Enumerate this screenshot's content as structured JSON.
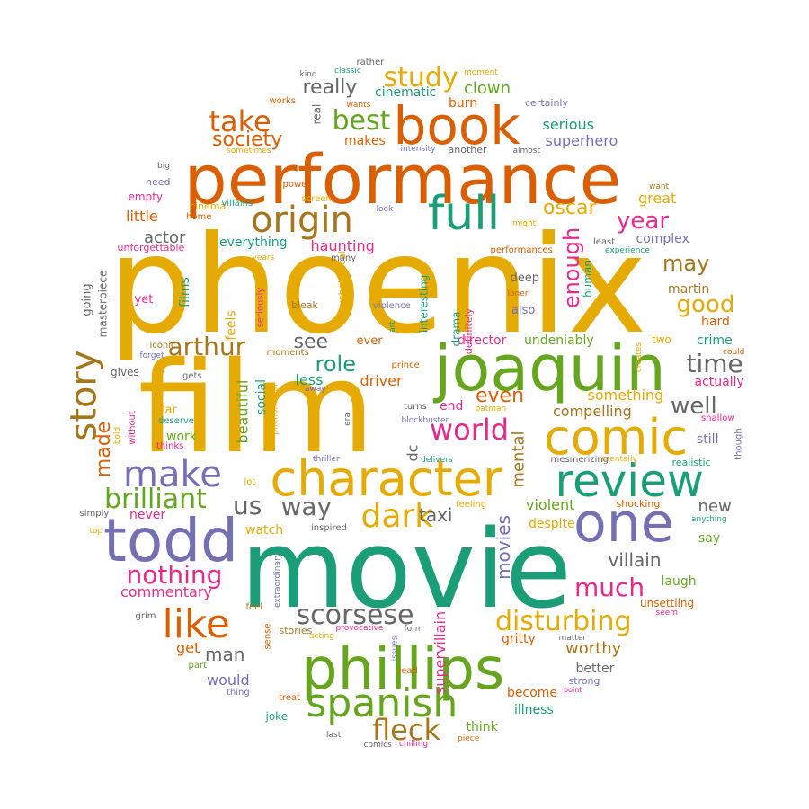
{
  "palette": {
    "orange": "#d95f02",
    "gold": "#e6ab02",
    "teal": "#1b9e77",
    "purple": "#7570b3",
    "pink": "#e7298a",
    "green": "#66a61e",
    "brown": "#a6761d",
    "gray": "#666666"
  },
  "words": [
    {
      "text": "phoenix",
      "color": "gold"
    },
    {
      "text": "film",
      "color": "gold"
    },
    {
      "text": "movie",
      "color": "teal"
    },
    {
      "text": "performance",
      "color": "orange"
    },
    {
      "text": "joaquin",
      "color": "green"
    },
    {
      "text": "phillips",
      "color": "green"
    },
    {
      "text": "book",
      "color": "orange"
    },
    {
      "text": "character",
      "color": "gold"
    },
    {
      "text": "comic",
      "color": "gold"
    },
    {
      "text": "todd",
      "color": "purple"
    },
    {
      "text": "one",
      "color": "purple"
    },
    {
      "text": "review",
      "color": "teal"
    },
    {
      "text": "full",
      "color": "teal"
    },
    {
      "text": "spanish",
      "color": "green"
    },
    {
      "text": "origin",
      "color": "brown"
    },
    {
      "text": "story",
      "color": "brown"
    },
    {
      "text": "like",
      "color": "orange"
    },
    {
      "text": "make",
      "color": "purple"
    },
    {
      "text": "dark",
      "color": "gold"
    },
    {
      "text": "fleck",
      "color": "brown"
    },
    {
      "text": "world",
      "color": "pink"
    },
    {
      "text": "disturbing",
      "color": "gold"
    },
    {
      "text": "scorsese",
      "color": "gray"
    },
    {
      "text": "brilliant",
      "color": "green"
    },
    {
      "text": "nothing",
      "color": "pink"
    },
    {
      "text": "much",
      "color": "pink"
    },
    {
      "text": "time",
      "color": "gray"
    },
    {
      "text": "way",
      "color": "gray"
    },
    {
      "text": "us",
      "color": "gray"
    },
    {
      "text": "take",
      "color": "orange"
    },
    {
      "text": "best",
      "color": "green"
    },
    {
      "text": "study",
      "color": "gold"
    },
    {
      "text": "arthur",
      "color": "brown"
    },
    {
      "text": "enough",
      "color": "pink"
    },
    {
      "text": "year",
      "color": "pink"
    },
    {
      "text": "oscar",
      "color": "gold"
    },
    {
      "text": "well",
      "color": "gray"
    },
    {
      "text": "good",
      "color": "gold"
    },
    {
      "text": "may",
      "color": "brown"
    },
    {
      "text": "society",
      "color": "orange"
    },
    {
      "text": "really",
      "color": "gray"
    },
    {
      "text": "see",
      "color": "gray"
    },
    {
      "text": "role",
      "color": "teal"
    },
    {
      "text": "even",
      "color": "orange"
    },
    {
      "text": "made",
      "color": "orange"
    },
    {
      "text": "villain",
      "color": "gray"
    },
    {
      "text": "movies",
      "color": "purple"
    },
    {
      "text": "man",
      "color": "gray"
    },
    {
      "text": "mental",
      "color": "brown"
    },
    {
      "text": "taxi",
      "color": "gray"
    },
    {
      "text": "worthy",
      "color": "brown"
    },
    {
      "text": "supervillain",
      "color": "pink"
    },
    {
      "text": "clown",
      "color": "green"
    },
    {
      "text": "serious",
      "color": "teal"
    },
    {
      "text": "superhero",
      "color": "purple"
    },
    {
      "text": "something",
      "color": "gold"
    },
    {
      "text": "compelling",
      "color": "brown"
    },
    {
      "text": "violent",
      "color": "green"
    },
    {
      "text": "beautiful",
      "color": "green"
    },
    {
      "text": "actor",
      "color": "gray"
    },
    {
      "text": "little",
      "color": "orange"
    },
    {
      "text": "new",
      "color": "gray"
    },
    {
      "text": "commentary",
      "color": "pink"
    },
    {
      "text": "complex",
      "color": "purple"
    },
    {
      "text": "martin",
      "color": "brown"
    },
    {
      "text": "hard",
      "color": "orange"
    },
    {
      "text": "haunting",
      "color": "pink"
    },
    {
      "text": "everything",
      "color": "teal"
    },
    {
      "text": "great",
      "color": "gold"
    },
    {
      "text": "cinematic",
      "color": "teal"
    },
    {
      "text": "makes",
      "color": "orange"
    },
    {
      "text": "burn",
      "color": "orange"
    },
    {
      "text": "less",
      "color": "teal"
    },
    {
      "text": "driver",
      "color": "orange"
    },
    {
      "text": "dc",
      "color": "gray"
    },
    {
      "text": "end",
      "color": "pink"
    },
    {
      "text": "crime",
      "color": "teal"
    },
    {
      "text": "actually",
      "color": "pink"
    },
    {
      "text": "director",
      "color": "pink"
    },
    {
      "text": "social",
      "color": "teal"
    },
    {
      "text": "feels",
      "color": "gold"
    },
    {
      "text": "films",
      "color": "teal"
    },
    {
      "text": "would",
      "color": "purple"
    },
    {
      "text": "get",
      "color": "orange"
    },
    {
      "text": "watch",
      "color": "gold"
    },
    {
      "text": "work",
      "color": "green"
    },
    {
      "text": "laugh",
      "color": "green"
    },
    {
      "text": "never",
      "color": "pink"
    },
    {
      "text": "illness",
      "color": "teal"
    },
    {
      "text": "gritty",
      "color": "orange"
    },
    {
      "text": "think",
      "color": "green"
    },
    {
      "text": "become",
      "color": "orange"
    },
    {
      "text": "better",
      "color": "gray"
    },
    {
      "text": "undeniably",
      "color": "green"
    },
    {
      "text": "despite",
      "color": "gold"
    },
    {
      "text": "still",
      "color": "purple"
    },
    {
      "text": "say",
      "color": "green"
    },
    {
      "text": "unsettling",
      "color": "orange"
    },
    {
      "text": "two",
      "color": "gold"
    },
    {
      "text": "deep",
      "color": "gray"
    },
    {
      "text": "also",
      "color": "purple"
    },
    {
      "text": "far",
      "color": "gold"
    },
    {
      "text": "going",
      "color": "gray"
    },
    {
      "text": "masterpiece",
      "color": "gray"
    },
    {
      "text": "ever",
      "color": "orange"
    },
    {
      "text": "interesting",
      "color": "teal"
    },
    {
      "text": "drama",
      "color": "teal"
    },
    {
      "text": "definitely",
      "color": "pink"
    },
    {
      "text": "human",
      "color": "teal"
    },
    {
      "text": "yet",
      "color": "pink"
    },
    {
      "text": "iconic",
      "color": "brown"
    },
    {
      "text": "gives",
      "color": "gray"
    },
    {
      "text": "gets",
      "color": "gray"
    },
    {
      "text": "forget",
      "color": "purple"
    },
    {
      "text": "cinema",
      "color": "gold"
    },
    {
      "text": "home",
      "color": "orange"
    },
    {
      "text": "empty",
      "color": "pink"
    },
    {
      "text": "need",
      "color": "purple"
    },
    {
      "text": "unforgettable",
      "color": "pink"
    },
    {
      "text": "deserve",
      "color": "teal"
    },
    {
      "text": "thinks",
      "color": "pink"
    },
    {
      "text": "without",
      "color": "pink"
    },
    {
      "text": "bold",
      "color": "gold"
    },
    {
      "text": "simply",
      "color": "gray"
    },
    {
      "text": "top",
      "color": "gold"
    },
    {
      "text": "joke",
      "color": "teal"
    },
    {
      "text": "stories",
      "color": "brown"
    },
    {
      "text": "acting",
      "color": "gold"
    },
    {
      "text": "provocative",
      "color": "pink"
    },
    {
      "text": "form",
      "color": "gray"
    },
    {
      "text": "issues",
      "color": "purple"
    },
    {
      "text": "lead",
      "color": "orange"
    },
    {
      "text": "strong",
      "color": "purple"
    },
    {
      "text": "point",
      "color": "pink"
    },
    {
      "text": "matter",
      "color": "gray"
    },
    {
      "text": "seem",
      "color": "pink"
    },
    {
      "text": "piece",
      "color": "orange"
    },
    {
      "text": "chilling",
      "color": "pink"
    },
    {
      "text": "comics",
      "color": "gray"
    },
    {
      "text": "last",
      "color": "gray"
    },
    {
      "text": "treat",
      "color": "orange"
    },
    {
      "text": "thing",
      "color": "purple"
    },
    {
      "text": "part",
      "color": "green"
    },
    {
      "text": "grim",
      "color": "gray"
    },
    {
      "text": "feel",
      "color": "brown"
    },
    {
      "text": "sense",
      "color": "orange"
    },
    {
      "text": "extraordinary",
      "color": "purple"
    },
    {
      "text": "lot",
      "color": "gold"
    },
    {
      "text": "inspired",
      "color": "gray"
    },
    {
      "text": "feeling",
      "color": "gold"
    },
    {
      "text": "shocking",
      "color": "orange"
    },
    {
      "text": "anything",
      "color": "teal"
    },
    {
      "text": "realistic",
      "color": "teal"
    },
    {
      "text": "though",
      "color": "purple"
    },
    {
      "text": "shallow",
      "color": "pink"
    },
    {
      "text": "could",
      "color": "orange"
    },
    {
      "text": "creates",
      "color": "gold"
    },
    {
      "text": "mentally",
      "color": "gold"
    },
    {
      "text": "mesmerizing",
      "color": "gray"
    },
    {
      "text": "delivers",
      "color": "teal"
    },
    {
      "text": "thriller",
      "color": "purple"
    },
    {
      "text": "blockbuster",
      "color": "purple"
    },
    {
      "text": "batman",
      "color": "gold"
    },
    {
      "text": "turns",
      "color": "gray"
    },
    {
      "text": "era",
      "color": "gray"
    },
    {
      "text": "phenomenal",
      "color": "gold"
    },
    {
      "text": "away",
      "color": "purple"
    },
    {
      "text": "prince",
      "color": "orange"
    },
    {
      "text": "art",
      "color": "teal"
    },
    {
      "text": "violence",
      "color": "purple"
    },
    {
      "text": "bleak",
      "color": "brown"
    },
    {
      "text": "psychological",
      "color": "gold"
    },
    {
      "text": "moments",
      "color": "brown"
    },
    {
      "text": "seriously",
      "color": "pink"
    },
    {
      "text": "many",
      "color": "gray"
    },
    {
      "text": "years",
      "color": "gold"
    },
    {
      "text": "look",
      "color": "purple"
    },
    {
      "text": "villains",
      "color": "teal"
    },
    {
      "text": "screen",
      "color": "gold"
    },
    {
      "text": "power",
      "color": "orange"
    },
    {
      "text": "big",
      "color": "gray"
    },
    {
      "text": "sometimes",
      "color": "gold"
    },
    {
      "text": "intensity",
      "color": "purple"
    },
    {
      "text": "another",
      "color": "gray"
    },
    {
      "text": "almost",
      "color": "gray"
    },
    {
      "text": "certainly",
      "color": "purple"
    },
    {
      "text": "moment",
      "color": "gold"
    },
    {
      "text": "rather",
      "color": "gray"
    },
    {
      "text": "kind",
      "color": "gray"
    },
    {
      "text": "classic",
      "color": "teal"
    },
    {
      "text": "works",
      "color": "orange"
    },
    {
      "text": "wants",
      "color": "orange"
    },
    {
      "text": "real",
      "color": "gray"
    },
    {
      "text": "want",
      "color": "brown"
    },
    {
      "text": "might",
      "color": "gold"
    },
    {
      "text": "least",
      "color": "gray"
    },
    {
      "text": "experience",
      "color": "teal"
    },
    {
      "text": "performances",
      "color": "orange"
    },
    {
      "text": "loner",
      "color": "orange"
    }
  ]
}
